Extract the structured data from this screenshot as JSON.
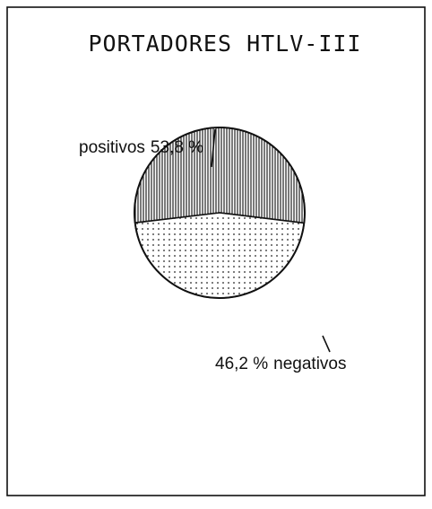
{
  "chart_data": {
    "type": "pie",
    "title": "PORTADORES HTLV-III",
    "categories": [
      "positivos",
      "negativos"
    ],
    "values": [
      53.8,
      46.2
    ],
    "value_labels": [
      "53,8 %",
      "46,2 %"
    ]
  }
}
